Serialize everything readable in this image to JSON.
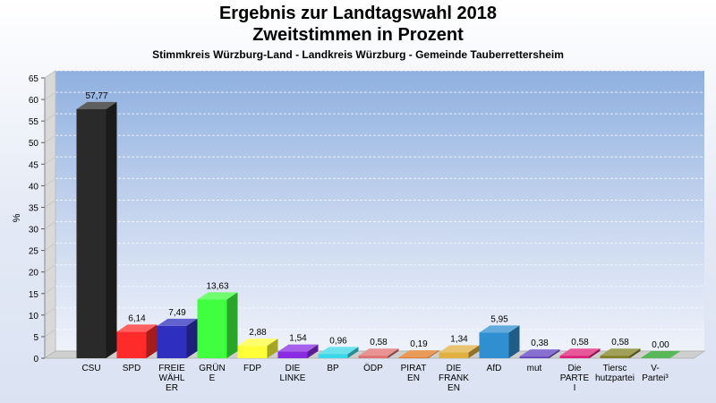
{
  "title": "Ergebnis zur Landtagswahl 2018",
  "subtitle": "Zweitstimmen in Prozent",
  "subtitle2": "Stimmkreis Würzburg-Land - Landkreis Würzburg - Gemeinde Tauberrettersheim",
  "chart_data": {
    "type": "bar",
    "ylabel": "%",
    "ylim": [
      0,
      65
    ],
    "yticks": [
      0,
      5,
      10,
      15,
      20,
      25,
      30,
      35,
      40,
      45,
      50,
      55,
      60,
      65
    ],
    "grid": true,
    "categories": [
      [
        "CSU"
      ],
      [
        "SPD"
      ],
      [
        "FREIE",
        "WÄHL",
        "ER"
      ],
      [
        "GRÜN",
        "E"
      ],
      [
        "FDP"
      ],
      [
        "DIE",
        "LINKE"
      ],
      [
        "BP"
      ],
      [
        "ÖDP"
      ],
      [
        "PIRAT",
        "EN"
      ],
      [
        "DIE",
        "FRANK",
        "EN"
      ],
      [
        "AfD"
      ],
      [
        "mut"
      ],
      [
        "Die",
        "PARTE",
        "I"
      ],
      [
        "Tiersc",
        "hutzpartei"
      ],
      [
        "V-",
        "Partei³"
      ]
    ],
    "values": [
      57.77,
      6.14,
      7.49,
      13.63,
      2.88,
      1.54,
      0.96,
      0.58,
      0.19,
      1.34,
      5.95,
      0.38,
      0.58,
      0.58,
      0.0
    ],
    "value_labels": [
      "57,77",
      "6,14",
      "7,49",
      "13,63",
      "2,88",
      "1,54",
      "0,96",
      "0,58",
      "0,19",
      "1,34",
      "5,95",
      "0,38",
      "0,58",
      "0,58",
      "0,00"
    ],
    "colors": [
      "#2a2a2a",
      "#ff2b2b",
      "#2f2fbf",
      "#3fff3f",
      "#ffff3a",
      "#8a2be2",
      "#3ad8e8",
      "#e07070",
      "#e07820",
      "#e0b040",
      "#2f8fd0",
      "#6040c0",
      "#e0207a",
      "#808020",
      "#20a020"
    ]
  }
}
